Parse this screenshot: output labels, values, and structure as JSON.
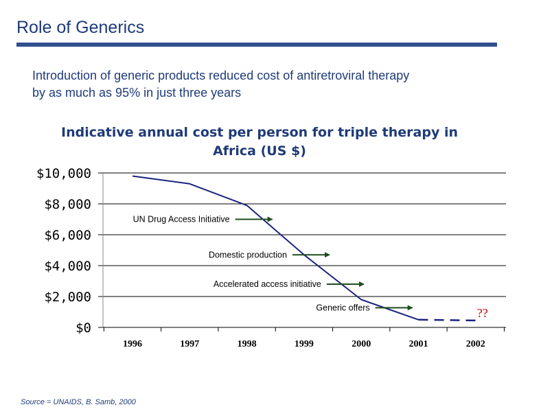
{
  "slide": {
    "title": "Role of Generics",
    "intro_line1": "Introduction of generic products reduced cost of antiretroviral therapy",
    "intro_line2": "by as much as 95% in just three years",
    "source": "Source = UNAIDS, B. Samb, 2000"
  },
  "chart_data": {
    "type": "line",
    "title_line1": "Indicative annual cost per person for triple therapy in",
    "title_line2": "Africa  (US $)",
    "categories": [
      "1996",
      "1997",
      "1998",
      "1999",
      "2000",
      "2001",
      "2002"
    ],
    "y_tick_labels": [
      "$10,000",
      "$8,000",
      "$6,000",
      "$4,000",
      "$2,000",
      "$0"
    ],
    "ylim": [
      0,
      10000
    ],
    "grid": true,
    "series": [
      {
        "style": "solid",
        "points": [
          [
            1996,
            9800
          ],
          [
            1997,
            9300
          ],
          [
            1998,
            7900
          ],
          [
            1999,
            4700
          ],
          [
            2000,
            1800
          ],
          [
            2001,
            500
          ]
        ]
      },
      {
        "style": "dashed",
        "points": [
          [
            2001,
            500
          ],
          [
            2002,
            450
          ]
        ]
      }
    ],
    "annotations": [
      {
        "text": "UN Drug Access Initiative",
        "year": 1997.7,
        "value": 7000
      },
      {
        "text": "Domestic production",
        "year": 1998.7,
        "value": 4700
      },
      {
        "text": "Accelerated access initiative",
        "year": 1999.3,
        "value": 2800
      },
      {
        "text": "Generic offers",
        "year": 2000.15,
        "value": 1270
      }
    ],
    "question_mark": "??",
    "colors": {
      "line": "#1a237e",
      "arrow": "#1e4d1e",
      "question": "#cc0000",
      "grid": "#000000"
    }
  }
}
